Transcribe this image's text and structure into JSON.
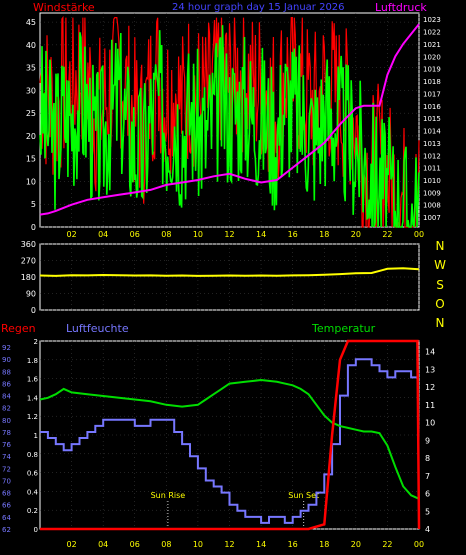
{
  "header": {
    "wind_label": "Windstärke",
    "title": "24 hour graph day  15 Januar 2026",
    "pressure_label": "Luftdruck"
  },
  "colors": {
    "background": "#000000",
    "frame": "#ffffff",
    "grid": "#444444",
    "wind_label": "#ff0000",
    "title": "#4444ff",
    "pressure": "#ff00ff",
    "wind_avg": "#00ff00",
    "wind_gust": "#ff0000",
    "direction": "#ffff00",
    "rain": "#ff0000",
    "humidity": "#7777ff",
    "temperature": "#00dd00",
    "tick_text": "#ffff00",
    "annotation": "#ffff00"
  },
  "x_axis": {
    "ticks": [
      "02",
      "04",
      "06",
      "08",
      "10",
      "12",
      "14",
      "16",
      "18",
      "20",
      "22",
      "00"
    ]
  },
  "chart_data": [
    {
      "type": "line",
      "name": "wind_pressure",
      "x_unit": "hour",
      "xlim": [
        0,
        24
      ],
      "y_left_ticks": [
        0,
        5,
        10,
        15,
        20,
        25,
        30,
        35,
        40,
        45
      ],
      "y_left_range": [
        0,
        47
      ],
      "y_right_ticks": [
        1007,
        1008,
        1009,
        1010,
        1011,
        1012,
        1013,
        1014,
        1015,
        1016,
        1017,
        1018,
        1019,
        1020,
        1021,
        1022,
        1023
      ],
      "y_right_range": [
        1006.2,
        1023.5
      ],
      "grid": true,
      "series": [
        {
          "name": "Windstärke",
          "role": "wind_avg",
          "axis": "left",
          "x": [
            0,
            0.5,
            1,
            1.5,
            2,
            2.5,
            3,
            3.5,
            4,
            4.5,
            5,
            5.5,
            6,
            6.5,
            7,
            7.5,
            8,
            8.5,
            9,
            9.5,
            10,
            10.5,
            11,
            11.5,
            12,
            12.5,
            13,
            13.5,
            14,
            14.5,
            15,
            15.5,
            16,
            16.5,
            17,
            17.5,
            18,
            18.5,
            19,
            19.5,
            20,
            20.5,
            21,
            21.5,
            22,
            22.5,
            23,
            23.5,
            24
          ],
          "values": [
            26,
            22,
            20,
            25,
            24,
            28,
            26,
            18,
            20,
            25,
            29,
            22,
            18,
            15,
            24,
            28,
            22,
            25,
            20,
            26,
            22,
            20,
            24,
            28,
            25,
            26,
            27,
            24,
            25,
            22,
            20,
            28,
            26,
            24,
            22,
            20,
            25,
            24,
            22,
            20,
            18,
            14,
            12,
            10,
            8,
            5,
            3,
            2,
            3
          ]
        },
        {
          "name": "Windstärke",
          "role": "wind_gust",
          "axis": "left",
          "x": [
            0,
            0.5,
            1,
            1.5,
            2,
            2.5,
            3,
            3.5,
            4,
            4.5,
            5,
            5.5,
            6,
            6.5,
            7,
            7.5,
            8,
            8.5,
            9,
            9.5,
            10,
            10.5,
            11,
            11.5,
            12,
            12.5,
            13,
            13.5,
            14,
            14.5,
            15,
            15.5,
            16,
            16.5,
            17,
            17.5,
            18,
            18.5,
            19,
            19.5,
            20,
            20.5,
            21,
            21.5,
            22,
            22.5,
            23,
            23.5,
            24
          ],
          "values": [
            32,
            28,
            26,
            31,
            30,
            35,
            33,
            24,
            26,
            31,
            36,
            29,
            24,
            21,
            30,
            34,
            28,
            31,
            26,
            32,
            28,
            27,
            30,
            35,
            31,
            33,
            34,
            30,
            31,
            29,
            26,
            34,
            32,
            30,
            28,
            26,
            31,
            30,
            28,
            26,
            24,
            12,
            12,
            14,
            11,
            8,
            6,
            4,
            5
          ]
        },
        {
          "name": "Luftdruck",
          "role": "pressure",
          "axis": "right",
          "x": [
            0,
            0.5,
            1,
            2,
            3,
            4,
            5,
            6,
            7,
            8,
            9,
            10,
            11,
            12,
            13,
            14,
            15,
            16,
            17,
            18,
            19,
            20,
            20.5,
            21,
            21.5,
            22,
            22.5,
            23,
            23.5,
            24
          ],
          "values": [
            1007.2,
            1007.3,
            1007.5,
            1008.0,
            1008.4,
            1008.6,
            1008.8,
            1009.0,
            1009.2,
            1009.6,
            1009.8,
            1010.0,
            1010.3,
            1010.5,
            1010.1,
            1009.8,
            1010.0,
            1011.0,
            1012.0,
            1013.0,
            1014.5,
            1015.8,
            1016.0,
            1016.0,
            1016.0,
            1018.5,
            1020.0,
            1021.0,
            1021.8,
            1022.6
          ]
        }
      ]
    },
    {
      "type": "line",
      "name": "wind_direction",
      "x_unit": "hour",
      "xlim": [
        0,
        24
      ],
      "y_ticks": [
        0,
        90,
        180,
        270,
        360
      ],
      "y_range": [
        0,
        360
      ],
      "compass_labels": [
        "N",
        "W",
        "S",
        "O",
        "N"
      ],
      "grid": true,
      "series": [
        {
          "name": "Windrichtung",
          "role": "direction",
          "x": [
            0,
            1,
            2,
            3,
            4,
            5,
            6,
            7,
            8,
            9,
            10,
            11,
            12,
            13,
            14,
            15,
            16,
            17,
            18,
            19,
            20,
            21,
            22,
            23,
            24
          ],
          "values": [
            188,
            186,
            190,
            189,
            191,
            190,
            188,
            189,
            187,
            188,
            186,
            187,
            188,
            187,
            188,
            187,
            189,
            190,
            192,
            196,
            200,
            202,
            225,
            228,
            222
          ]
        }
      ]
    },
    {
      "type": "line",
      "name": "rain_humidity_temperature",
      "x_unit": "hour",
      "xlim": [
        0,
        24
      ],
      "labels": {
        "rain": "Regen",
        "humidity": "Luftfeuchte",
        "temperature": "Temperatur"
      },
      "y_rain_ticks": [
        0,
        0.2,
        0.4,
        0.6,
        0.8,
        1,
        1.2,
        1.4,
        1.6,
        1.8,
        2
      ],
      "y_rain_range": [
        0,
        2
      ],
      "y_hum_ticks": [
        62,
        64,
        66,
        68,
        70,
        72,
        74,
        76,
        78,
        80,
        82,
        84,
        86,
        88,
        90,
        92
      ],
      "y_hum_range": [
        62,
        93
      ],
      "y_temp_ticks": [
        4,
        5,
        6,
        7,
        8,
        9,
        10,
        11,
        12,
        13,
        14
      ],
      "y_temp_range": [
        4,
        14.6
      ],
      "grid": true,
      "annotations": [
        {
          "label": "Sun Rise",
          "x": 8.1
        },
        {
          "label": "Sun Set",
          "x": 16.7
        }
      ],
      "series": [
        {
          "name": "Regen",
          "role": "rain",
          "x": [
            0,
            1,
            2,
            3,
            4,
            5,
            6,
            7,
            8,
            9,
            10,
            11,
            12,
            13,
            14,
            15,
            16,
            17,
            18,
            18.5,
            19,
            19.5,
            20,
            21,
            22,
            23,
            23.9,
            24
          ],
          "values": [
            0,
            0,
            0,
            0,
            0,
            0,
            0,
            0,
            0,
            0,
            0,
            0,
            0,
            0,
            0,
            0,
            0,
            0,
            0.05,
            1.0,
            1.8,
            2.0,
            2.0,
            2.0,
            2.0,
            2.0,
            2.0,
            0
          ]
        },
        {
          "name": "Luftfeuchte",
          "role": "humidity",
          "x": [
            0,
            0.5,
            1,
            1.5,
            2,
            2.5,
            3,
            3.5,
            4,
            5,
            6,
            7,
            8,
            8.5,
            9,
            9.5,
            10,
            10.5,
            11,
            11.5,
            12,
            12.5,
            13,
            14,
            14.5,
            15,
            15.5,
            16,
            16.5,
            17,
            17.5,
            18,
            18.5,
            19,
            19.5,
            20,
            20.5,
            21,
            21.5,
            22,
            22.5,
            23,
            23.5,
            24
          ],
          "values": [
            78,
            77,
            76,
            75,
            76,
            77,
            78,
            79,
            80,
            80,
            79,
            80,
            80,
            78,
            76,
            74,
            72,
            70,
            69,
            68,
            66,
            65,
            64,
            63,
            64,
            64,
            63,
            64,
            65,
            66,
            68,
            71,
            76,
            84,
            89,
            90,
            90,
            89,
            88,
            87,
            88,
            88,
            87,
            87
          ]
        },
        {
          "name": "Temperatur",
          "role": "temperature",
          "x": [
            0,
            0.5,
            1,
            1.5,
            2,
            3,
            4,
            5,
            6,
            7,
            8,
            9,
            10,
            10.5,
            11,
            11.5,
            12,
            13,
            14,
            15,
            16,
            16.5,
            17,
            17.5,
            18,
            18.5,
            19,
            19.5,
            20,
            20.5,
            21,
            21.5,
            22,
            22.5,
            23,
            23.5,
            24
          ],
          "values": [
            11.3,
            11.4,
            11.6,
            11.9,
            11.7,
            11.6,
            11.5,
            11.4,
            11.3,
            11.2,
            11.0,
            10.9,
            11.0,
            11.3,
            11.6,
            11.9,
            12.2,
            12.3,
            12.4,
            12.3,
            12.1,
            11.9,
            11.6,
            11.0,
            10.4,
            10.0,
            9.8,
            9.7,
            9.6,
            9.5,
            9.5,
            9.4,
            8.7,
            7.5,
            6.4,
            5.9,
            5.7
          ]
        }
      ]
    }
  ]
}
